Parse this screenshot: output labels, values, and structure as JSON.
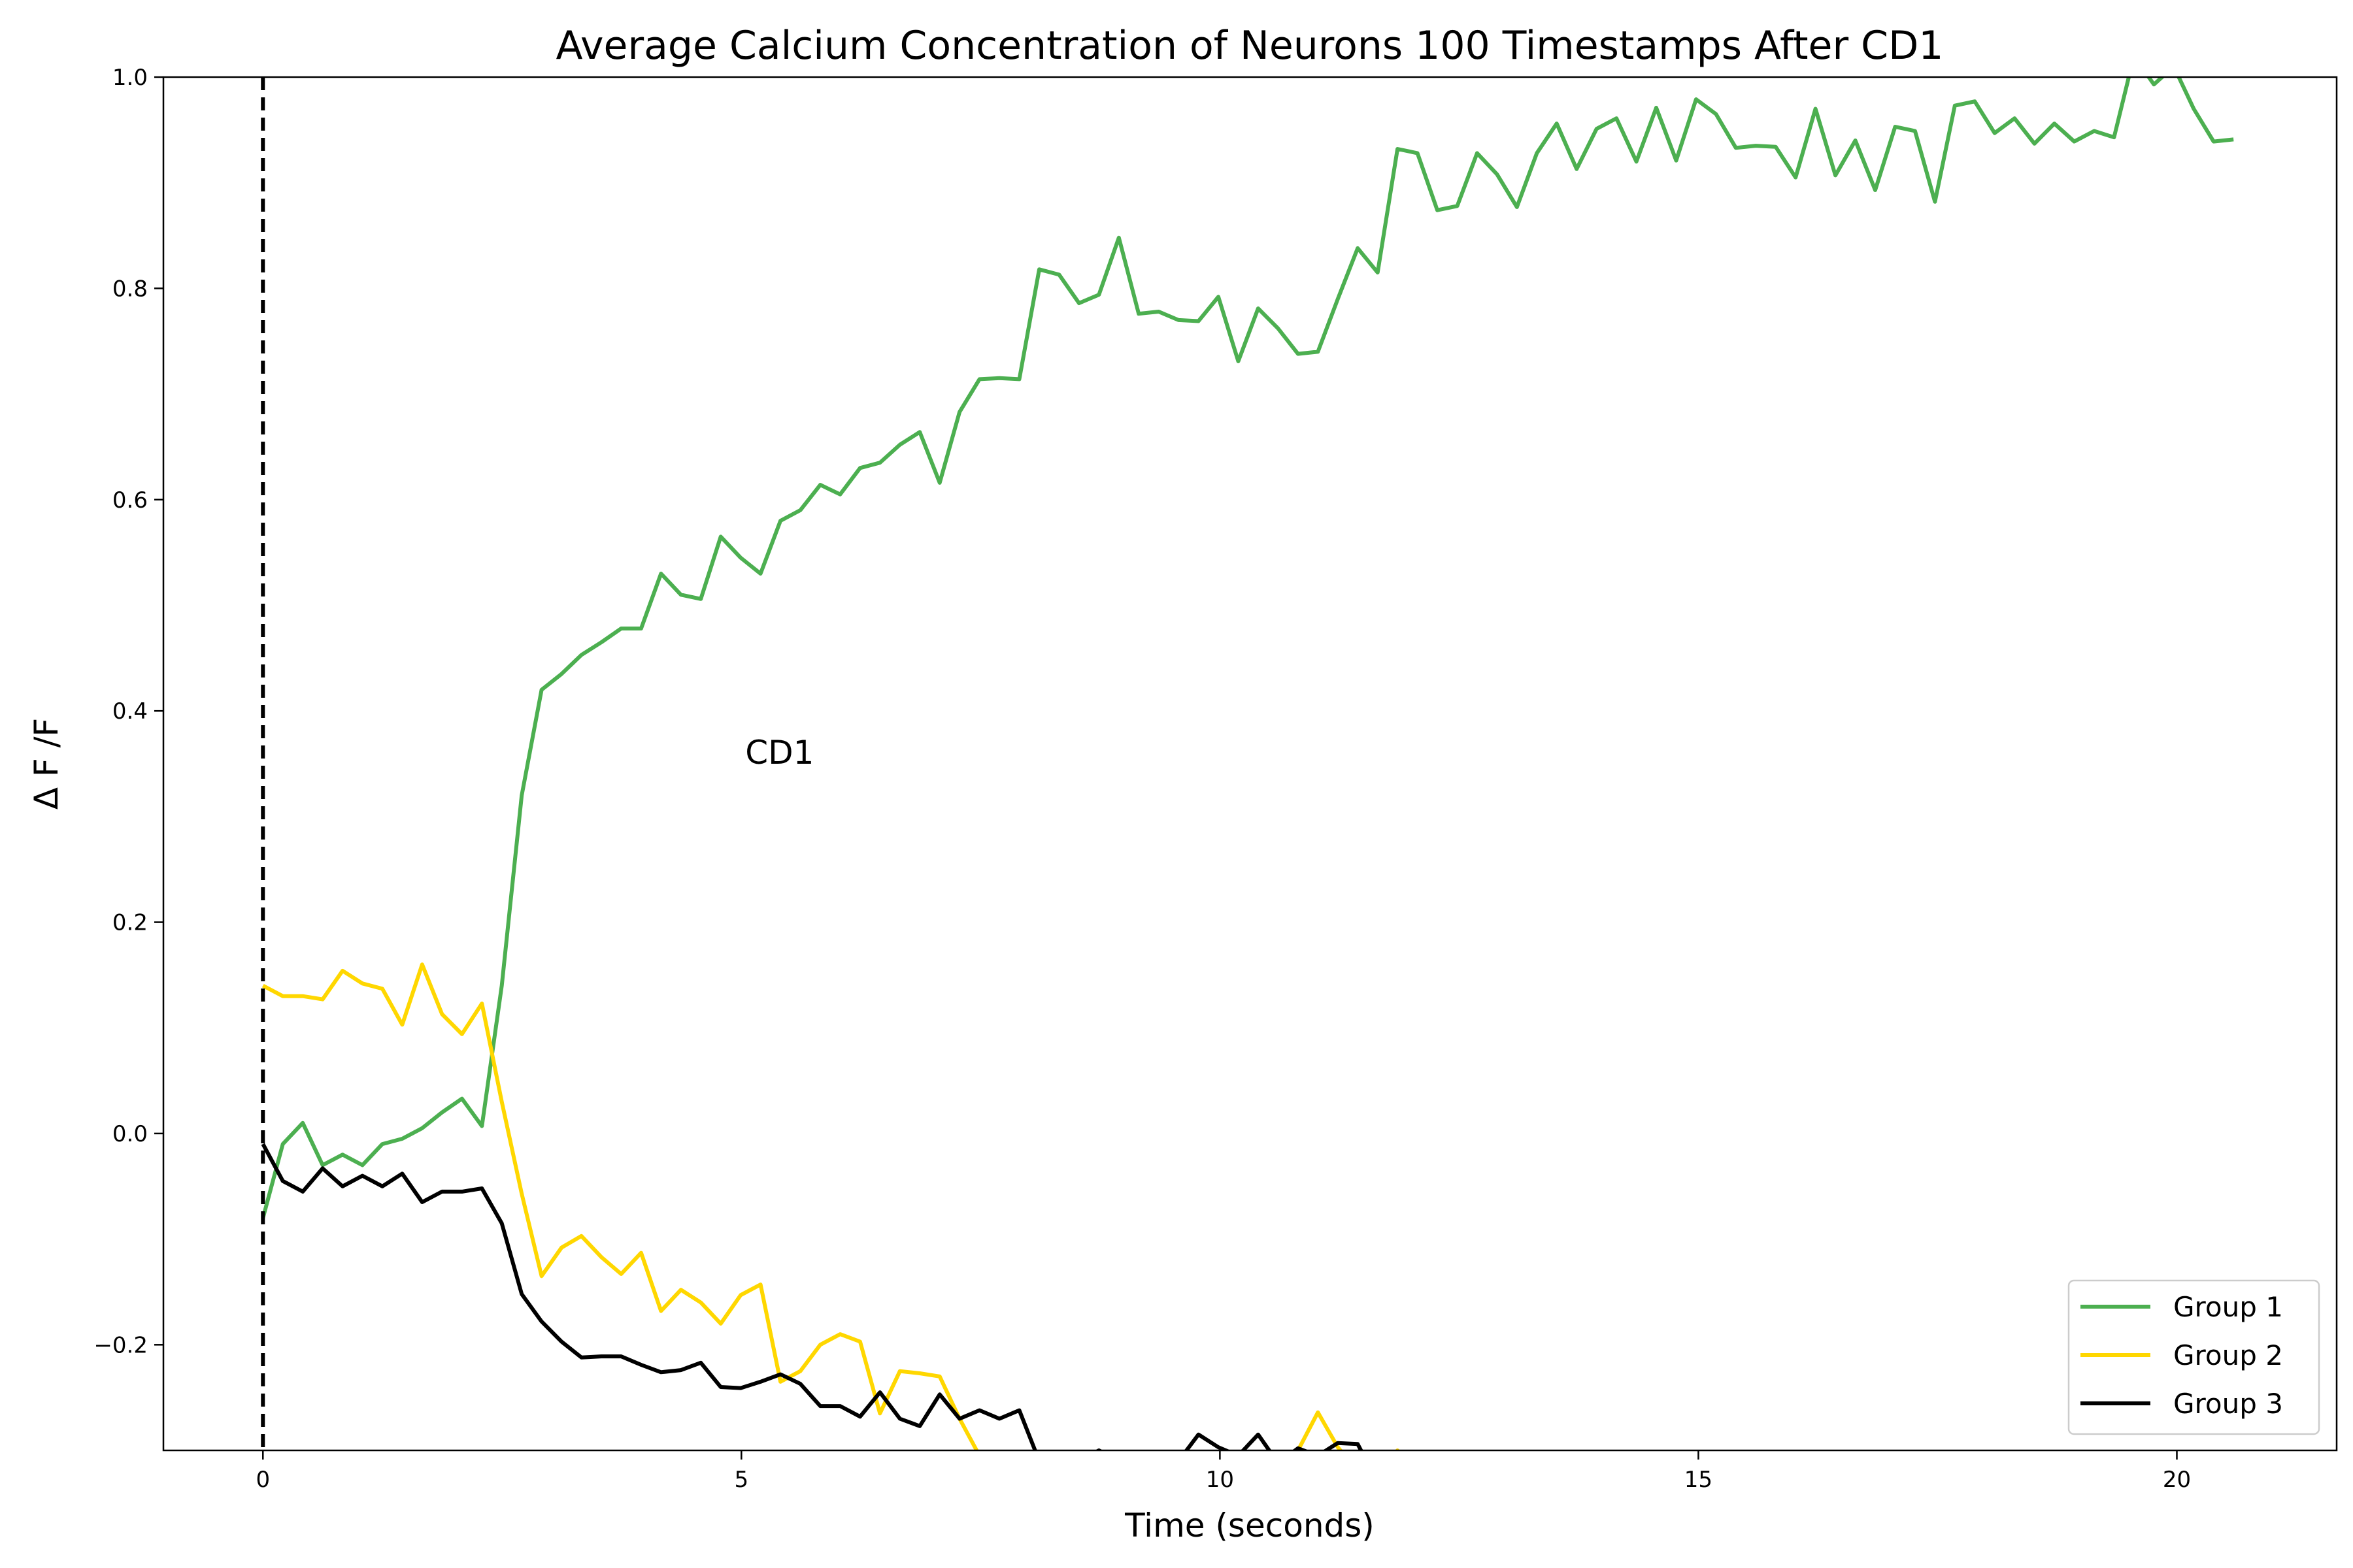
{
  "chart_data": {
    "type": "line",
    "title": "Average Calcium Concentration of Neurons 100 Timestamps After CD1",
    "xlabel": "Time (seconds)",
    "ylabel": "Δ F /F",
    "xlim": [
      -1.04,
      21.67
    ],
    "ylim": [
      -0.3,
      1.0
    ],
    "x_ticks": [
      0,
      5,
      10,
      15,
      20
    ],
    "y_ticks": [
      -0.2,
      0.0,
      0.2,
      0.4,
      0.6,
      0.8,
      1.0
    ],
    "y_tick_labels": [
      "−0.2",
      "0.0",
      "0.2",
      "0.4",
      "0.6",
      "0.8",
      "1.0"
    ],
    "grid": false,
    "legend_position": "lower right",
    "event_line": {
      "x": 0,
      "style": "dashed",
      "color": "#000000"
    },
    "annotations": [
      {
        "text": "CD1",
        "x": 5.4,
        "y": 0.35
      }
    ],
    "x_start": 0,
    "x_step": 0.208,
    "series": [
      {
        "name": "Group 1",
        "color": "#4caf50",
        "values": [
          -0.08,
          -0.01,
          0.01,
          -0.03,
          -0.02,
          -0.03,
          -0.01,
          -0.005,
          0.005,
          0.02,
          0.033,
          0.007,
          0.14,
          0.32,
          0.42,
          0.435,
          0.453,
          0.465,
          0.478,
          0.478,
          0.53,
          0.51,
          0.506,
          0.565,
          0.545,
          0.53,
          0.58,
          0.59,
          0.614,
          0.605,
          0.63,
          0.635,
          0.652,
          0.664,
          0.616,
          0.683,
          0.714,
          0.715,
          0.714,
          0.818,
          0.813,
          0.786,
          0.794,
          0.848,
          0.776,
          0.778,
          0.77,
          0.769,
          0.792,
          0.731,
          0.781,
          0.762,
          0.738,
          0.74,
          0.79,
          0.838,
          0.815,
          0.932,
          0.928,
          0.874,
          0.878,
          0.928,
          0.908,
          0.877,
          0.928,
          0.956,
          0.913,
          0.951,
          0.961,
          0.92,
          0.971,
          0.921,
          0.979,
          0.965,
          0.933,
          0.935,
          0.934,
          0.905,
          0.97,
          0.907,
          0.94,
          0.893,
          0.953,
          0.949,
          0.882,
          0.973,
          0.977,
          0.947,
          0.961,
          0.937,
          0.956,
          0.939,
          0.949,
          0.943,
          1.02,
          0.993,
          1.01,
          0.97,
          0.939,
          0.941
        ]
      },
      {
        "name": "Group 2",
        "color": "#ffd700",
        "values": [
          0.14,
          0.13,
          0.13,
          0.127,
          0.154,
          0.142,
          0.137,
          0.103,
          0.16,
          0.113,
          0.094,
          0.123,
          0.03,
          -0.057,
          -0.135,
          -0.108,
          -0.097,
          -0.117,
          -0.133,
          -0.113,
          -0.168,
          -0.148,
          -0.16,
          -0.18,
          -0.153,
          -0.143,
          -0.235,
          -0.225,
          -0.2,
          -0.19,
          -0.197,
          -0.265,
          -0.225,
          -0.227,
          -0.23,
          -0.27,
          -0.305,
          -0.32,
          -0.33,
          -0.33,
          -0.33,
          -0.33,
          -0.33,
          -0.33,
          -0.32,
          -0.32,
          -0.32,
          -0.32,
          -0.33,
          -0.33,
          -0.33,
          -0.32,
          -0.3,
          -0.264,
          -0.297,
          -0.32,
          -0.32,
          -0.3,
          -0.32,
          -0.33,
          -0.33,
          -0.33,
          -0.33,
          -0.33,
          -0.33,
          -0.33,
          -0.33,
          -0.33,
          -0.33,
          -0.33,
          -0.33,
          -0.33,
          -0.33,
          -0.33,
          -0.33,
          -0.33,
          -0.33,
          -0.33,
          -0.33,
          -0.33,
          -0.33,
          -0.33,
          -0.33,
          -0.33,
          -0.33,
          -0.33,
          -0.33,
          -0.33,
          -0.33,
          -0.33,
          -0.33,
          -0.33,
          -0.33,
          -0.33,
          -0.33,
          -0.33,
          -0.33,
          -0.33,
          -0.33,
          -0.33
        ]
      },
      {
        "name": "Group 3",
        "color": "#000000",
        "values": [
          -0.01,
          -0.045,
          -0.055,
          -0.033,
          -0.05,
          -0.04,
          -0.05,
          -0.038,
          -0.065,
          -0.055,
          -0.055,
          -0.052,
          -0.085,
          -0.152,
          -0.178,
          -0.197,
          -0.212,
          -0.211,
          -0.211,
          -0.219,
          -0.226,
          -0.224,
          -0.217,
          -0.24,
          -0.241,
          -0.235,
          -0.228,
          -0.237,
          -0.258,
          -0.258,
          -0.268,
          -0.245,
          -0.27,
          -0.277,
          -0.247,
          -0.27,
          -0.262,
          -0.27,
          -0.262,
          -0.31,
          -0.32,
          -0.31,
          -0.3,
          -0.31,
          -0.31,
          -0.31,
          -0.31,
          -0.285,
          -0.297,
          -0.305,
          -0.285,
          -0.312,
          -0.298,
          -0.305,
          -0.293,
          -0.294,
          -0.33,
          -0.33,
          -0.33,
          -0.33,
          -0.33,
          -0.33,
          -0.33,
          -0.33,
          -0.33,
          -0.33,
          -0.33,
          -0.33,
          -0.33,
          -0.33,
          -0.33,
          -0.33,
          -0.33,
          -0.33,
          -0.33,
          -0.33,
          -0.33,
          -0.33,
          -0.33,
          -0.33,
          -0.33,
          -0.33,
          -0.33,
          -0.33,
          -0.33,
          -0.33,
          -0.33,
          -0.33,
          -0.33,
          -0.33,
          -0.33,
          -0.33,
          -0.33,
          -0.33,
          -0.33,
          -0.33,
          -0.33,
          -0.33,
          -0.33,
          -0.33
        ]
      }
    ]
  }
}
